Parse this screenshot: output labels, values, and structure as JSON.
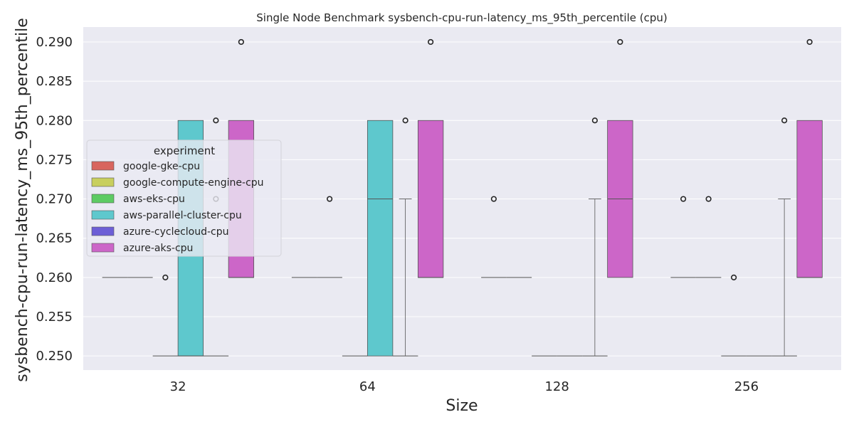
{
  "chart_data": {
    "type": "box",
    "title": "Single Node Benchmark sysbench-cpu-run-latency_ms_95th_percentile (cpu)",
    "xlabel": "Size",
    "ylabel": "sysbench-cpu-run-latency_ms_95th_percentile",
    "categories": [
      "32",
      "64",
      "128",
      "256"
    ],
    "ylim": [
      0.2482,
      0.2919
    ],
    "yticks": [
      "0.250",
      "0.255",
      "0.260",
      "0.265",
      "0.270",
      "0.275",
      "0.280",
      "0.285",
      "0.290"
    ],
    "grid": true,
    "background": "#eaeaf2",
    "legend": {
      "title": "experiment",
      "placement": "center-left"
    },
    "series": [
      {
        "name": "google-gke-cpu",
        "color": "#d8655e",
        "boxes": [
          {
            "q1": 0.26,
            "median": 0.26,
            "q3": 0.26,
            "whislo": 0.26,
            "whishi": 0.26,
            "fliers": []
          },
          {
            "q1": 0.26,
            "median": 0.26,
            "q3": 0.26,
            "whislo": 0.26,
            "whishi": 0.26,
            "fliers": []
          },
          {
            "q1": 0.26,
            "median": 0.26,
            "q3": 0.26,
            "whislo": 0.26,
            "whishi": 0.26,
            "fliers": [
              0.27
            ]
          },
          {
            "q1": 0.26,
            "median": 0.26,
            "q3": 0.26,
            "whislo": 0.26,
            "whishi": 0.26,
            "fliers": [
              0.27
            ]
          }
        ]
      },
      {
        "name": "google-compute-engine-cpu",
        "color": "#c8cf5e",
        "boxes": [
          {
            "q1": 0.26,
            "median": 0.26,
            "q3": 0.26,
            "whislo": 0.26,
            "whishi": 0.26,
            "fliers": []
          },
          {
            "q1": 0.26,
            "median": 0.26,
            "q3": 0.26,
            "whislo": 0.26,
            "whishi": 0.26,
            "fliers": [
              0.27
            ]
          },
          {
            "q1": 0.26,
            "median": 0.26,
            "q3": 0.26,
            "whislo": 0.26,
            "whishi": 0.26,
            "fliers": []
          },
          {
            "q1": 0.26,
            "median": 0.26,
            "q3": 0.26,
            "whislo": 0.26,
            "whishi": 0.26,
            "fliers": [
              0.27
            ]
          }
        ]
      },
      {
        "name": "aws-eks-cpu",
        "color": "#5dcb63",
        "boxes": [
          {
            "q1": 0.25,
            "median": 0.25,
            "q3": 0.25,
            "whislo": 0.25,
            "whishi": 0.25,
            "fliers": [
              0.26
            ]
          },
          {
            "q1": 0.25,
            "median": 0.25,
            "q3": 0.25,
            "whislo": 0.25,
            "whishi": 0.25,
            "fliers": []
          },
          {
            "q1": 0.25,
            "median": 0.25,
            "q3": 0.25,
            "whislo": 0.25,
            "whishi": 0.25,
            "fliers": []
          },
          {
            "q1": 0.25,
            "median": 0.25,
            "q3": 0.25,
            "whislo": 0.25,
            "whishi": 0.25,
            "fliers": [
              0.26
            ]
          }
        ]
      },
      {
        "name": "aws-parallel-cluster-cpu",
        "color": "#5ec8cd",
        "boxes": [
          {
            "q1": 0.25,
            "median": 0.25,
            "q3": 0.28,
            "whislo": 0.25,
            "whishi": 0.28,
            "fliers": []
          },
          {
            "q1": 0.25,
            "median": 0.27,
            "q3": 0.28,
            "whislo": 0.25,
            "whishi": 0.28,
            "fliers": []
          },
          {
            "q1": 0.25,
            "median": 0.25,
            "q3": 0.25,
            "whislo": 0.25,
            "whishi": 0.25,
            "fliers": []
          },
          {
            "q1": 0.25,
            "median": 0.25,
            "q3": 0.25,
            "whislo": 0.25,
            "whishi": 0.25,
            "fliers": []
          }
        ]
      },
      {
        "name": "azure-cyclecloud-cpu",
        "color": "#6d5fd6",
        "boxes": [
          {
            "q1": 0.25,
            "median": 0.25,
            "q3": 0.25,
            "whislo": 0.25,
            "whishi": 0.25,
            "fliers": [
              0.27,
              0.28
            ]
          },
          {
            "q1": 0.25,
            "median": 0.25,
            "q3": 0.25,
            "whislo": 0.25,
            "whishi": 0.27,
            "fliers": [
              0.28
            ]
          },
          {
            "q1": 0.25,
            "median": 0.25,
            "q3": 0.25,
            "whislo": 0.25,
            "whishi": 0.27,
            "fliers": [
              0.28
            ]
          },
          {
            "q1": 0.25,
            "median": 0.25,
            "q3": 0.25,
            "whislo": 0.25,
            "whishi": 0.27,
            "fliers": [
              0.28
            ]
          }
        ]
      },
      {
        "name": "azure-aks-cpu",
        "color": "#cc66c8",
        "boxes": [
          {
            "q1": 0.26,
            "median": 0.26,
            "q3": 0.28,
            "whislo": 0.26,
            "whishi": 0.28,
            "fliers": [
              0.29
            ]
          },
          {
            "q1": 0.26,
            "median": 0.26,
            "q3": 0.28,
            "whislo": 0.26,
            "whishi": 0.28,
            "fliers": [
              0.29
            ]
          },
          {
            "q1": 0.26,
            "median": 0.27,
            "q3": 0.28,
            "whislo": 0.26,
            "whishi": 0.28,
            "fliers": [
              0.29
            ]
          },
          {
            "q1": 0.26,
            "median": 0.26,
            "q3": 0.28,
            "whislo": 0.26,
            "whishi": 0.28,
            "fliers": [
              0.29
            ]
          }
        ]
      }
    ]
  }
}
